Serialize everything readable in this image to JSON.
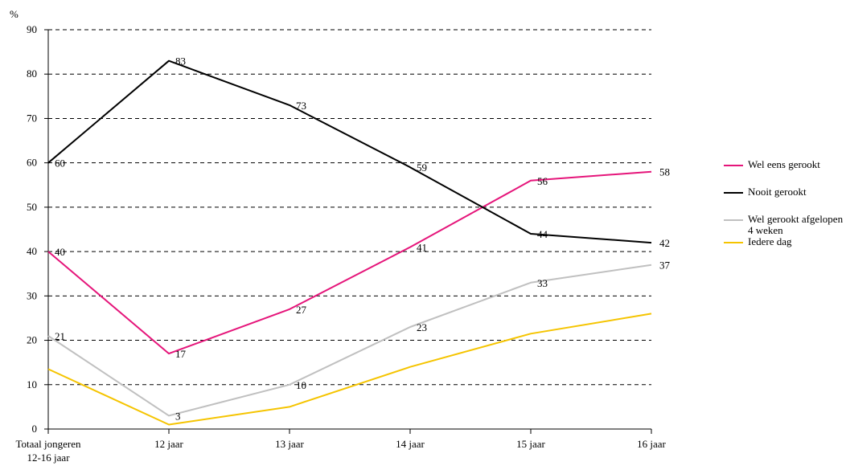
{
  "chart_data": {
    "type": "line",
    "title": "",
    "ylabel": "%",
    "xlabel": "",
    "ylim": [
      0,
      90
    ],
    "yticks": [
      0,
      10,
      20,
      30,
      40,
      50,
      60,
      70,
      80,
      90
    ],
    "grid": "horizontal dashed",
    "legend_position": "right",
    "categories": [
      "Totaal jongeren 12-16 jaar",
      "12 jaar",
      "13 jaar",
      "14 jaar",
      "15 jaar",
      "16 jaar"
    ],
    "series": [
      {
        "name": "Wel eens gerookt",
        "color": "#e5157a",
        "values": [
          40,
          17,
          27,
          41,
          56,
          58
        ],
        "labels": [
          "40",
          "17",
          "27",
          "41",
          "56",
          "58"
        ]
      },
      {
        "name": "Nooit gerookt",
        "color": "#000000",
        "values": [
          60,
          83,
          73,
          59,
          44,
          42
        ],
        "labels": [
          "60",
          "83",
          "73",
          "59",
          "44",
          "42"
        ]
      },
      {
        "name": "Wel gerookt afgelopen 4 weken",
        "color": "#c0c0c0",
        "values": [
          21,
          3,
          10,
          23,
          33,
          37
        ],
        "labels": [
          "21",
          "3",
          "10",
          "23",
          "33",
          "37"
        ]
      },
      {
        "name": "Iedere dag",
        "color": "#f5c400",
        "values": [
          13.5,
          1,
          5,
          14,
          21.5,
          26
        ],
        "labels": []
      }
    ]
  }
}
